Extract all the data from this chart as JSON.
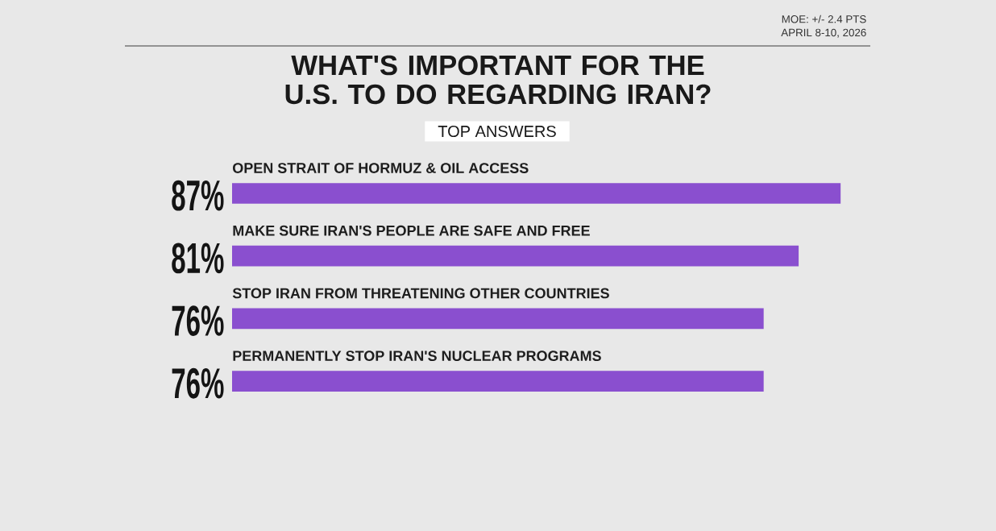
{
  "chart_data": {
    "type": "bar",
    "orientation": "horizontal",
    "title": "WHAT'S IMPORTANT FOR THE U.S. TO DO REGARDING IRAN?",
    "subtitle": "TOP ANSWERS",
    "annotations": [
      "MOE: +/- 2.4 PTS",
      "APRIL 8-10, 2026"
    ],
    "categories": [
      "OPEN STRAIT OF HORMUZ & OIL ACCESS",
      "MAKE SURE IRAN'S PEOPLE ARE SAFE AND FREE",
      "STOP IRAN FROM THREATENING OTHER COUNTRIES",
      "PERMANENTLY STOP IRAN'S NUCLEAR PROGRAMS"
    ],
    "values": [
      87,
      81,
      76,
      76
    ],
    "value_labels": [
      "87%",
      "81%",
      "76%",
      "76%"
    ],
    "color": "#8a4fcf"
  }
}
